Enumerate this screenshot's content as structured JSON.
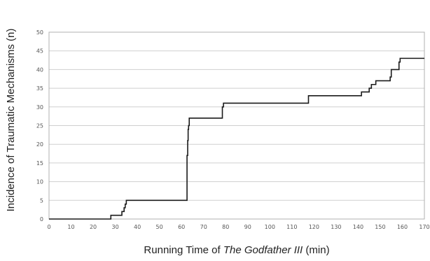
{
  "chart_data": {
    "type": "line",
    "step": true,
    "xlabel_parts": {
      "before": "Running Time of ",
      "italic": "The Godfather III",
      "after": " (min)"
    },
    "ylabel": "Incidence of Traumatic Mechanisms (n)",
    "xlim": [
      0,
      170
    ],
    "ylim": [
      0,
      50
    ],
    "xticks": [
      0,
      10,
      20,
      30,
      40,
      50,
      60,
      70,
      80,
      90,
      100,
      110,
      120,
      130,
      140,
      150,
      160,
      170
    ],
    "yticks": [
      0,
      5,
      10,
      15,
      20,
      25,
      30,
      35,
      40,
      45,
      50
    ],
    "grid": "horizontal",
    "series": [
      {
        "color": "#1a1a1a",
        "x": [
          0,
          28,
          33,
          34,
          34.5,
          35,
          62.5,
          62.8,
          63,
          63.2,
          63.5,
          78.5,
          79,
          117.5,
          141.5,
          145,
          146,
          148,
          154.5,
          155,
          158.5,
          159,
          170
        ],
        "y": [
          0,
          1,
          2,
          3,
          4,
          5,
          17,
          21,
          24,
          25,
          27,
          30,
          31,
          33,
          34,
          35,
          36,
          37,
          38,
          40,
          42,
          43,
          43
        ]
      }
    ]
  }
}
